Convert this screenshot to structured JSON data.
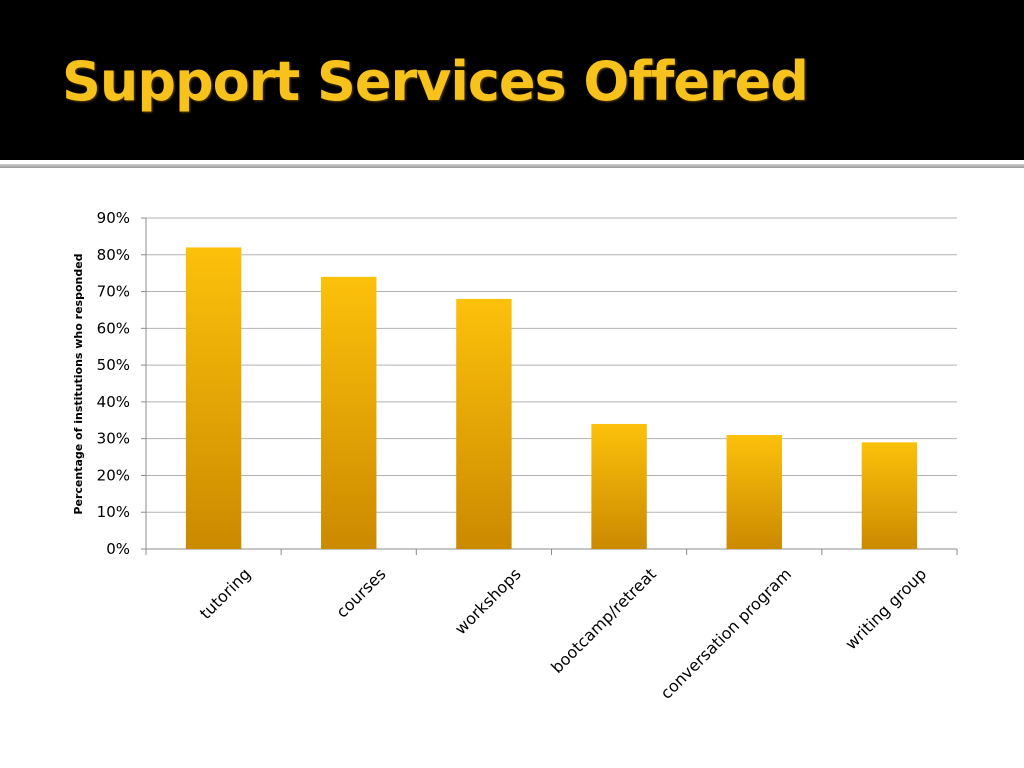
{
  "slide": {
    "title": "Support Services Offered"
  },
  "colors": {
    "title_bar": "#000000",
    "title_text": "#f7c21b",
    "bar_top": "#fcc10b",
    "bar_bottom": "#cb8a00",
    "gridline": "#b3b3b3"
  },
  "chart_data": {
    "type": "bar",
    "title": "",
    "xlabel": "",
    "ylabel": "Percentage of institutions who responded",
    "categories": [
      "tutoring",
      "courses",
      "workshops",
      "bootcamp/retreat",
      "conversation program",
      "writing group"
    ],
    "values": [
      82,
      74,
      68,
      34,
      31,
      29
    ],
    "ylim": [
      0,
      90
    ],
    "yticks": [
      0,
      10,
      20,
      30,
      40,
      50,
      60,
      70,
      80,
      90
    ],
    "ytick_labels": [
      "0%",
      "10%",
      "20%",
      "30%",
      "40%",
      "50%",
      "60%",
      "70%",
      "80%",
      "90%"
    ],
    "grid": true,
    "legend": "none"
  }
}
